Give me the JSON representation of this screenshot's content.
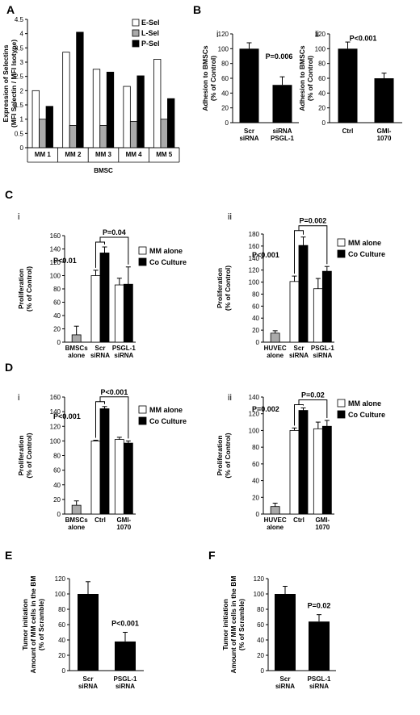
{
  "chart_data": [
    {
      "id": "A",
      "panel_label": "A",
      "type": "bar",
      "ylabel": [
        "Expression of Selectins",
        "(MFI Selectin / MFI Isotype)"
      ],
      "xlabel": "BMSC",
      "categories": [
        "MM 1",
        "MM 2",
        "MM 3",
        "MM 4",
        "MM 5"
      ],
      "series": [
        {
          "name": "E-Sel",
          "color": "#ffffff",
          "values": [
            2.0,
            3.35,
            2.75,
            2.15,
            3.1
          ]
        },
        {
          "name": "L-Sel",
          "color": "#aaaaaa",
          "values": [
            1.0,
            0.78,
            0.78,
            0.92,
            1.0
          ]
        },
        {
          "name": "P-Sel",
          "color": "#000000",
          "values": [
            1.45,
            4.05,
            2.65,
            2.52,
            1.72
          ]
        }
      ],
      "ylim": [
        0,
        4.5
      ],
      "yticks": [
        "0",
        "0.5",
        "1",
        "1.5",
        "2",
        "2.5",
        "3",
        "3.5",
        "4",
        "4.5"
      ],
      "legend_position": "top-right",
      "grid": false
    },
    {
      "id": "Bi",
      "panel_label": "B",
      "sub_label": "i",
      "type": "bar",
      "ylabel": [
        "Adhesion to BMSCs",
        "(% of Control)"
      ],
      "categories": [
        [
          "Scr",
          "siRNA"
        ],
        [
          "siRNA",
          "PSGL-1"
        ]
      ],
      "values": [
        100,
        51
      ],
      "errors": [
        8,
        11
      ],
      "ylim": [
        0,
        120
      ],
      "yticks": [
        "0",
        "20",
        "40",
        "60",
        "80",
        "100",
        "120"
      ],
      "annotations": [
        "P=0.006"
      ]
    },
    {
      "id": "Bii",
      "sub_label": "ii",
      "type": "bar",
      "ylabel": [
        "Adhesion to BMSCs",
        "(% of Control)"
      ],
      "categories": [
        [
          "Ctrl"
        ],
        [
          "GMI-",
          "1070"
        ]
      ],
      "values": [
        100,
        60
      ],
      "errors": [
        9,
        7
      ],
      "ylim": [
        0,
        120
      ],
      "yticks": [
        "0",
        "20",
        "40",
        "60",
        "80",
        "100",
        "120"
      ],
      "annotations": [
        "P<0.001"
      ]
    },
    {
      "id": "Ci",
      "panel_label": "C",
      "sub_label": "i",
      "type": "bar",
      "ylabel": [
        "Proliferation",
        "(% of Control)"
      ],
      "categories": [
        [
          "BMSCs",
          "alone"
        ],
        [
          "Scr",
          "siRNA"
        ],
        [
          "PSGL-1",
          "siRNA"
        ]
      ],
      "alone": {
        "value": 11,
        "error": 13
      },
      "series": [
        {
          "name": "MM alone",
          "color": "#ffffff",
          "values": [
            null,
            100,
            86
          ],
          "errors": [
            null,
            8,
            10
          ]
        },
        {
          "name": "Co Culture",
          "color": "#000000",
          "values": [
            null,
            134,
            87
          ],
          "errors": [
            null,
            9,
            26
          ]
        }
      ],
      "ylim": [
        0,
        160
      ],
      "yticks": [
        "0",
        "20",
        "40",
        "60",
        "80",
        "100",
        "120",
        "140",
        "160"
      ],
      "annotations": [
        "P<0.01",
        "P=0.04"
      ],
      "legend_position": "right"
    },
    {
      "id": "Cii",
      "sub_label": "ii",
      "type": "bar",
      "ylabel": [
        "Proliferation",
        "(% of Control)"
      ],
      "categories": [
        [
          "HUVEC",
          "alone"
        ],
        [
          "Scr",
          "siRNA"
        ],
        [
          "PSGL-1",
          "siRNA"
        ]
      ],
      "alone": {
        "value": 15,
        "error": 4
      },
      "series": [
        {
          "name": "MM alone",
          "color": "#ffffff",
          "values": [
            null,
            101,
            89
          ],
          "errors": [
            null,
            9,
            17
          ]
        },
        {
          "name": "Co Culture",
          "color": "#000000",
          "values": [
            null,
            161,
            118
          ],
          "errors": [
            null,
            14,
            8
          ]
        }
      ],
      "ylim": [
        0,
        180
      ],
      "yticks": [
        "0",
        "20",
        "40",
        "60",
        "80",
        "100",
        "120",
        "140",
        "160",
        "180"
      ],
      "annotations": [
        "P<0.001",
        "P=0.002"
      ],
      "legend_position": "right"
    },
    {
      "id": "Di",
      "panel_label": "D",
      "sub_label": "i",
      "type": "bar",
      "ylabel": [
        "Proliferation",
        "(% of Control)"
      ],
      "categories": [
        [
          "BMSCs",
          "alone"
        ],
        [
          "Ctrl"
        ],
        [
          "GMI-",
          "1070"
        ]
      ],
      "alone": {
        "value": 12,
        "error": 6
      },
      "series": [
        {
          "name": "MM alone",
          "color": "#ffffff",
          "values": [
            null,
            100,
            102
          ],
          "errors": [
            null,
            1,
            3
          ]
        },
        {
          "name": "Co Culture",
          "color": "#000000",
          "values": [
            null,
            144,
            97
          ],
          "errors": [
            null,
            3,
            3
          ]
        }
      ],
      "ylim": [
        0,
        160
      ],
      "yticks": [
        "0",
        "20",
        "40",
        "60",
        "80",
        "100",
        "120",
        "140",
        "160"
      ],
      "annotations": [
        "P<0.001",
        "P<0.001"
      ],
      "legend_position": "right"
    },
    {
      "id": "Dii",
      "sub_label": "ii",
      "type": "bar",
      "ylabel": [
        "Proliferation",
        "(% of Control)"
      ],
      "categories": [
        [
          "HUVEC",
          "alone"
        ],
        [
          "Ctrl"
        ],
        [
          "GMI-",
          "1070"
        ]
      ],
      "alone": {
        "value": 9,
        "error": 4
      },
      "series": [
        {
          "name": "MM alone",
          "color": "#ffffff",
          "values": [
            null,
            100,
            102
          ],
          "errors": [
            null,
            3,
            8
          ]
        },
        {
          "name": "Co Culture",
          "color": "#000000",
          "values": [
            null,
            124,
            105
          ],
          "errors": [
            null,
            3,
            7
          ]
        }
      ],
      "ylim": [
        0,
        140
      ],
      "yticks": [
        "0",
        "20",
        "40",
        "60",
        "80",
        "100",
        "120",
        "140"
      ],
      "annotations": [
        "P=0.002",
        "P=0.02"
      ],
      "legend_position": "right"
    },
    {
      "id": "E",
      "panel_label": "E",
      "type": "bar",
      "ylabel": [
        "Tumor initiation",
        "Amount of MM cells in the BM",
        "(% of Scramble)"
      ],
      "categories": [
        [
          "Scr",
          "siRNA"
        ],
        [
          "PSGL-1",
          "siRNA"
        ]
      ],
      "values": [
        100,
        38
      ],
      "errors": [
        16,
        12
      ],
      "ylim": [
        0,
        120
      ],
      "yticks": [
        "0",
        "20",
        "40",
        "60",
        "80",
        "100",
        "120"
      ],
      "annotations": [
        "P<0.001"
      ]
    },
    {
      "id": "F",
      "panel_label": "F",
      "type": "bar",
      "ylabel": [
        "Tumor initiation",
        "Amount of MM cells in the BM",
        "(% of Scramble)"
      ],
      "categories": [
        [
          "Scr",
          "siRNA"
        ],
        [
          "PSGL-1",
          "siRNA"
        ]
      ],
      "values": [
        100,
        64
      ],
      "errors": [
        10,
        9
      ],
      "ylim": [
        0,
        120
      ],
      "yticks": [
        "0",
        "20",
        "40",
        "60",
        "80",
        "100",
        "120"
      ],
      "annotations": [
        "P=0.02"
      ]
    }
  ]
}
